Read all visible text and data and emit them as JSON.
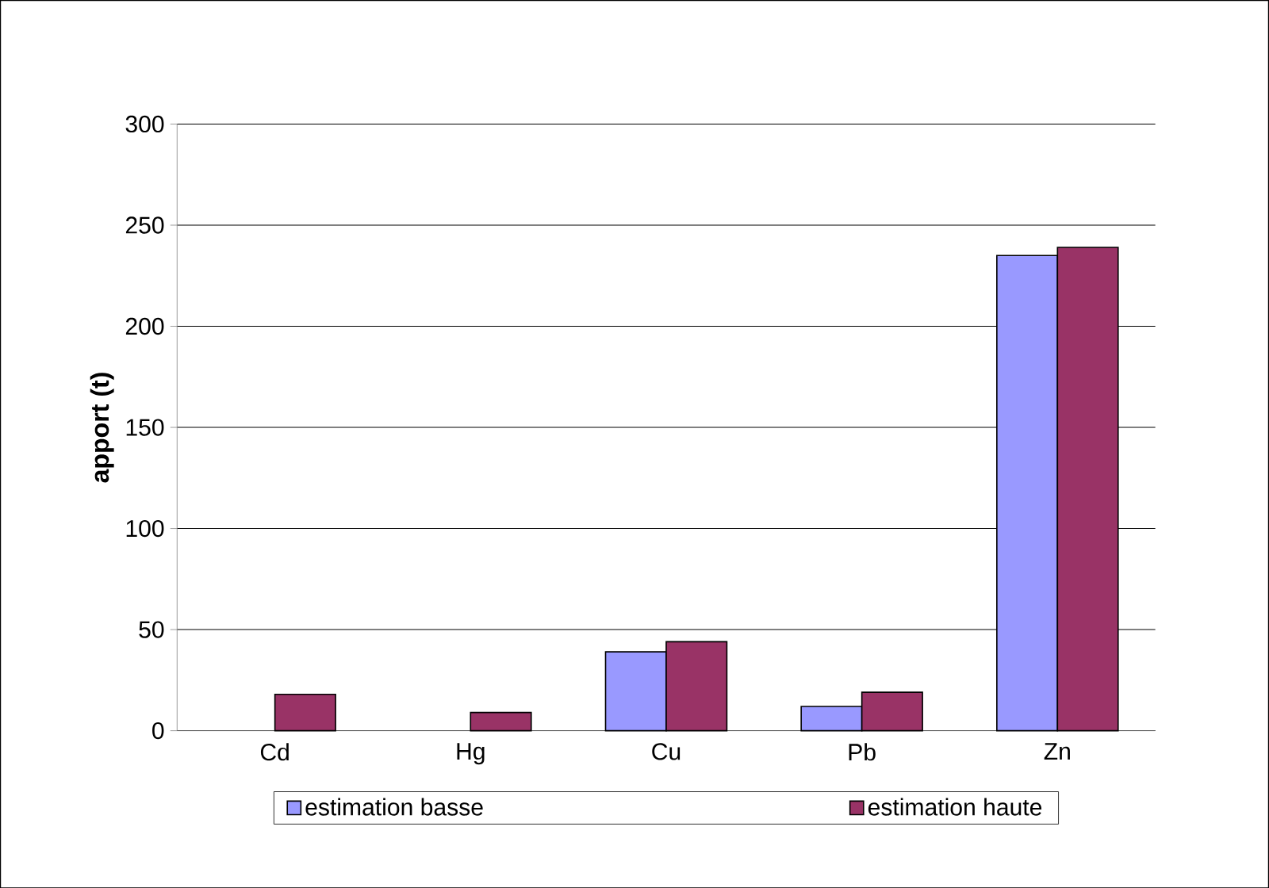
{
  "chart_data": {
    "type": "bar",
    "ylabel": "apport (t)",
    "categories": [
      "Cd",
      "Hg",
      "Cu",
      "Pb",
      "Zn"
    ],
    "series": [
      {
        "name": "estimation basse",
        "color": "#9999ff",
        "values": [
          null,
          null,
          39,
          12,
          235
        ]
      },
      {
        "name": "estimation haute",
        "color": "#993366",
        "values": [
          18,
          9,
          44,
          19,
          239
        ]
      }
    ],
    "ylim": [
      0,
      300
    ],
    "yticks": [
      0,
      50,
      100,
      150,
      200,
      250,
      300
    ],
    "grid": "y",
    "legend": "bottom"
  }
}
